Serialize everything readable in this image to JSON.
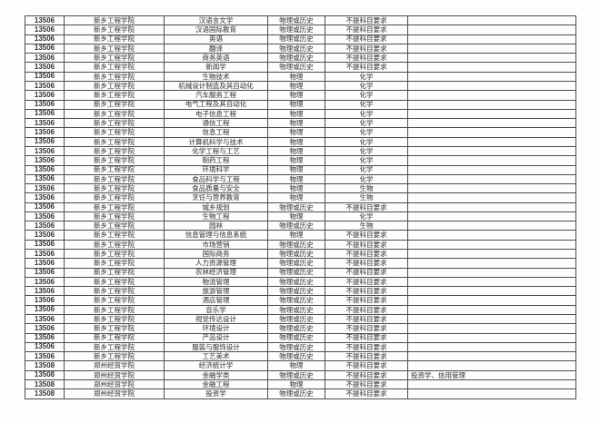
{
  "page": {
    "background_color": "#fdfdfd",
    "border_color": "#4d4d4d",
    "text_color": "#4a4a4a",
    "code_text_color": "#343434"
  },
  "table": {
    "column_semantics": [
      "college_code",
      "college_name",
      "major_name",
      "subject_selection",
      "elective_requirement",
      "remark"
    ],
    "rows": [
      [
        "13506",
        "新乡工程学院",
        "汉语言文学",
        "物理或历史",
        "不提科目要求",
        ""
      ],
      [
        "13506",
        "新乡工程学院",
        "汉语国际教育",
        "物理或历史",
        "不提科目要求",
        ""
      ],
      [
        "13506",
        "新乡工程学院",
        "英语",
        "物理或历史",
        "不提科目要求",
        ""
      ],
      [
        "13506",
        "新乡工程学院",
        "翻译",
        "物理或历史",
        "不提科目要求",
        ""
      ],
      [
        "13506",
        "新乡工程学院",
        "商务英语",
        "物理或历史",
        "不提科目要求",
        ""
      ],
      [
        "13506",
        "新乡工程学院",
        "新闻学",
        "物理或历史",
        "不提科目要求",
        ""
      ],
      [
        "13506",
        "新乡工程学院",
        "生物技术",
        "物理",
        "化学",
        ""
      ],
      [
        "13506",
        "新乡工程学院",
        "机械设计制造及其自动化",
        "物理",
        "化学",
        ""
      ],
      [
        "13506",
        "新乡工程学院",
        "汽车服务工程",
        "物理",
        "化学",
        ""
      ],
      [
        "13506",
        "新乡工程学院",
        "电气工程及其自动化",
        "物理",
        "化学",
        ""
      ],
      [
        "13506",
        "新乡工程学院",
        "电子信息工程",
        "物理",
        "化学",
        ""
      ],
      [
        "13506",
        "新乡工程学院",
        "通信工程",
        "物理",
        "化学",
        ""
      ],
      [
        "13506",
        "新乡工程学院",
        "信息工程",
        "物理",
        "化学",
        ""
      ],
      [
        "13506",
        "新乡工程学院",
        "计算机科学与技术",
        "物理",
        "化学",
        ""
      ],
      [
        "13506",
        "新乡工程学院",
        "化学工程与工艺",
        "物理",
        "化学",
        ""
      ],
      [
        "13506",
        "新乡工程学院",
        "制药工程",
        "物理",
        "化学",
        ""
      ],
      [
        "13506",
        "新乡工程学院",
        "环境科学",
        "物理",
        "化学",
        ""
      ],
      [
        "13506",
        "新乡工程学院",
        "食品科学与工程",
        "物理",
        "化学",
        ""
      ],
      [
        "13506",
        "新乡工程学院",
        "食品质量与安全",
        "物理",
        "生物",
        ""
      ],
      [
        "13506",
        "新乡工程学院",
        "烹饪与营养教育",
        "物理",
        "生物",
        ""
      ],
      [
        "13506",
        "新乡工程学院",
        "城乡规划",
        "物理或历史",
        "不提科目要求",
        ""
      ],
      [
        "13506",
        "新乡工程学院",
        "生物工程",
        "物理",
        "化学",
        ""
      ],
      [
        "13506",
        "新乡工程学院",
        "园林",
        "物理或历史",
        "生物",
        ""
      ],
      [
        "13506",
        "新乡工程学院",
        "信息管理与信息系统",
        "物理",
        "不提科目要求",
        ""
      ],
      [
        "13506",
        "新乡工程学院",
        "市场营销",
        "物理或历史",
        "不提科目要求",
        ""
      ],
      [
        "13506",
        "新乡工程学院",
        "国际商务",
        "物理或历史",
        "不提科目要求",
        ""
      ],
      [
        "13506",
        "新乡工程学院",
        "人力资源管理",
        "物理或历史",
        "不提科目要求",
        ""
      ],
      [
        "13506",
        "新乡工程学院",
        "农林经济管理",
        "物理或历史",
        "不提科目要求",
        ""
      ],
      [
        "13506",
        "新乡工程学院",
        "物流管理",
        "物理或历史",
        "不提科目要求",
        ""
      ],
      [
        "13506",
        "新乡工程学院",
        "旅游管理",
        "物理或历史",
        "不提科目要求",
        ""
      ],
      [
        "13506",
        "新乡工程学院",
        "酒店管理",
        "物理或历史",
        "不提科目要求",
        ""
      ],
      [
        "13506",
        "新乡工程学院",
        "音乐学",
        "物理或历史",
        "不提科目要求",
        ""
      ],
      [
        "13506",
        "新乡工程学院",
        "视觉传达设计",
        "物理或历史",
        "不提科目要求",
        ""
      ],
      [
        "13506",
        "新乡工程学院",
        "环境设计",
        "物理或历史",
        "不提科目要求",
        ""
      ],
      [
        "13506",
        "新乡工程学院",
        "产品设计",
        "物理或历史",
        "不提科目要求",
        ""
      ],
      [
        "13506",
        "新乡工程学院",
        "服装与服饰设计",
        "物理或历史",
        "不提科目要求",
        ""
      ],
      [
        "13506",
        "新乡工程学院",
        "工艺美术",
        "物理或历史",
        "不提科目要求",
        ""
      ],
      [
        "13508",
        "郑州经贸学院",
        "经济统计学",
        "物理",
        "不提科目要求",
        ""
      ],
      [
        "13508",
        "郑州经贸学院",
        "金融学类",
        "物理或历史",
        "不提科目要求",
        "投资学、信用管理"
      ],
      [
        "13508",
        "郑州经贸学院",
        "金融工程",
        "物理",
        "不提科目要求",
        ""
      ],
      [
        "13508",
        "郑州经贸学院",
        "投资学",
        "物理或历史",
        "不提科目要求",
        ""
      ]
    ]
  }
}
